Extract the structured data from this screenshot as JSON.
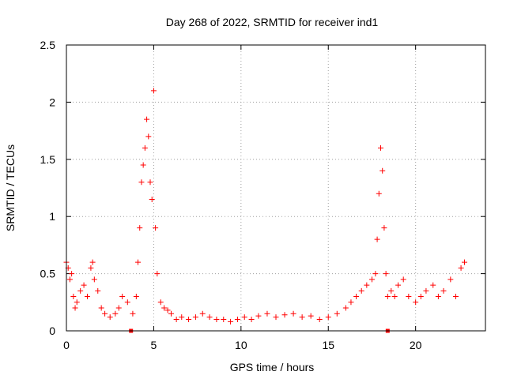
{
  "chart_data": {
    "type": "scatter",
    "title": "Day 268 of 2022, SRMTID for receiver ind1",
    "xlabel": "GPS time / hours",
    "ylabel": "SRMTID / TECUs",
    "xlim": [
      0,
      24
    ],
    "ylim": [
      0,
      2.5
    ],
    "xticks": [
      0,
      5,
      10,
      15,
      20
    ],
    "yticks": [
      0,
      0.5,
      1,
      1.5,
      2,
      2.5
    ],
    "xtick_labels": [
      "0",
      "5",
      "10",
      "15",
      "20"
    ],
    "ytick_labels": [
      "0",
      "0.5",
      "1",
      "1.5",
      "2",
      "2.5"
    ],
    "grid": true,
    "marker": "plus",
    "color": "#ff0000",
    "series": [
      {
        "name": "SRMTID",
        "x": [
          0.0,
          0.1,
          0.2,
          0.3,
          0.4,
          0.5,
          0.6,
          0.8,
          1.0,
          1.2,
          1.4,
          1.5,
          1.6,
          1.8,
          2.0,
          2.2,
          2.5,
          2.8,
          3.0,
          3.2,
          3.5,
          3.8,
          4.0,
          4.1,
          4.2,
          4.3,
          4.4,
          4.5,
          4.6,
          4.7,
          4.8,
          4.9,
          5.0,
          5.1,
          5.2,
          5.4,
          5.6,
          5.8,
          6.0,
          6.3,
          6.6,
          7.0,
          7.4,
          7.8,
          8.2,
          8.6,
          9.0,
          9.4,
          9.8,
          10.2,
          10.6,
          11.0,
          11.5,
          12.0,
          12.5,
          13.0,
          13.5,
          14.0,
          14.5,
          15.0,
          15.5,
          16.0,
          16.3,
          16.6,
          16.9,
          17.2,
          17.5,
          17.7,
          17.8,
          17.9,
          18.0,
          18.1,
          18.2,
          18.3,
          18.4,
          18.6,
          18.8,
          19.0,
          19.3,
          19.6,
          20.0,
          20.3,
          20.6,
          21.0,
          21.3,
          21.6,
          22.0,
          22.3,
          22.6,
          22.8
        ],
        "y": [
          0.6,
          0.55,
          0.45,
          0.5,
          0.3,
          0.2,
          0.25,
          0.35,
          0.4,
          0.3,
          0.55,
          0.6,
          0.45,
          0.35,
          0.2,
          0.15,
          0.12,
          0.15,
          0.2,
          0.3,
          0.25,
          0.15,
          0.3,
          0.6,
          0.9,
          1.3,
          1.45,
          1.6,
          1.85,
          1.7,
          1.3,
          1.15,
          2.1,
          0.9,
          0.5,
          0.25,
          0.2,
          0.18,
          0.15,
          0.1,
          0.12,
          0.1,
          0.12,
          0.15,
          0.12,
          0.1,
          0.1,
          0.08,
          0.1,
          0.12,
          0.1,
          0.13,
          0.15,
          0.12,
          0.14,
          0.15,
          0.12,
          0.13,
          0.1,
          0.12,
          0.15,
          0.2,
          0.25,
          0.3,
          0.35,
          0.4,
          0.45,
          0.5,
          0.8,
          1.2,
          1.6,
          1.4,
          0.9,
          0.5,
          0.3,
          0.35,
          0.3,
          0.4,
          0.45,
          0.3,
          0.25,
          0.3,
          0.35,
          0.4,
          0.3,
          0.35,
          0.45,
          0.3,
          0.55,
          0.6
        ]
      }
    ],
    "baseline_markers_x": [
      3.7,
      18.4
    ]
  }
}
